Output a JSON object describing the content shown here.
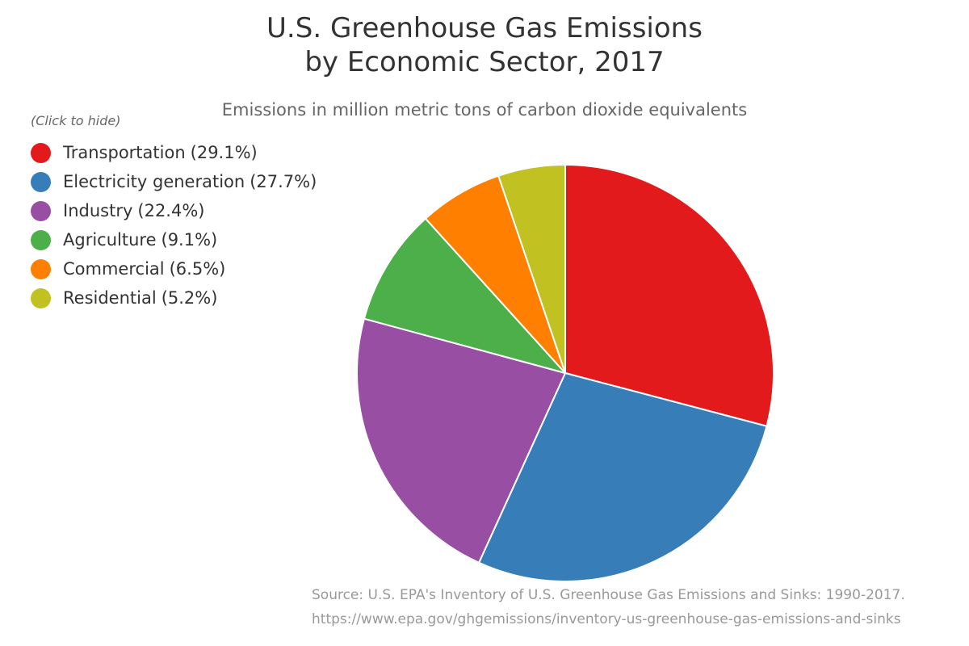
{
  "chart_data": {
    "type": "pie",
    "title_lines": [
      "U.S. Greenhouse Gas Emissions",
      "by Economic Sector, 2017"
    ],
    "subtitle": "Emissions in million metric tons of carbon dioxide equivalents",
    "legend_hint": "(Click to hide)",
    "legend_position": "top-left",
    "slices": [
      {
        "label": "Transportation",
        "value": 29.1,
        "pct_label": "(29.1%)",
        "color": "#e31a1c"
      },
      {
        "label": "Electricity generation",
        "value": 27.7,
        "pct_label": "(27.7%)",
        "color": "#377eb8"
      },
      {
        "label": "Industry",
        "value": 22.4,
        "pct_label": "(22.4%)",
        "color": "#984ea3"
      },
      {
        "label": "Agriculture",
        "value": 9.1,
        "pct_label": "(9.1%)",
        "color": "#4daf4a"
      },
      {
        "label": "Commercial",
        "value": 6.5,
        "pct_label": "(6.5%)",
        "color": "#ff7f00"
      },
      {
        "label": "Residential",
        "value": 5.2,
        "pct_label": "(5.2%)",
        "color": "#c1c121"
      }
    ],
    "source_lines": [
      "Source: U.S. EPA's Inventory of U.S. Greenhouse Gas Emissions and Sinks: 1990-2017.",
      "https://www.epa.gov/ghgemissions/inventory-us-greenhouse-gas-emissions-and-sinks"
    ]
  }
}
